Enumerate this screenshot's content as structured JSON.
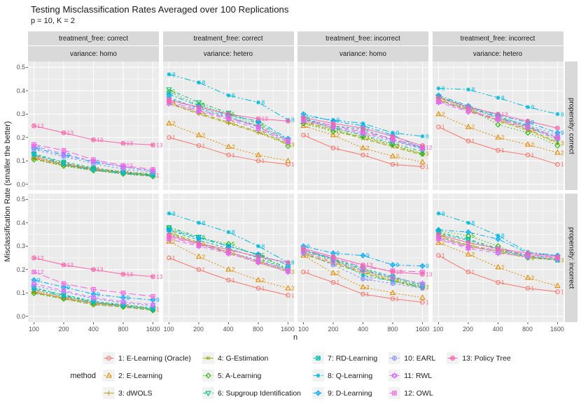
{
  "title": "Testing Misclassification Rates Averaged over 100 Replications",
  "subtitle": "p = 10, K = 2",
  "axes": {
    "x_label": "n",
    "y_label": "Misclassification Rate (smaller the better)",
    "x_ticks": [
      "100",
      "200",
      "400",
      "800",
      "1600"
    ],
    "y_ticks": [
      "0.0",
      "0.1",
      "0.2",
      "0.3",
      "0.4",
      "0.5"
    ]
  },
  "facets": {
    "columns": [
      {
        "line1": "treatment_free: correct",
        "line2": "variance: homo"
      },
      {
        "line1": "treatment_free: correct",
        "line2": "variance: hetero"
      },
      {
        "line1": "treatment_free: incorrect",
        "line2": "variance: homo"
      },
      {
        "line1": "treatment_free: incorrect",
        "line2": "variance: hetero"
      }
    ],
    "rows": [
      {
        "label": "propensity: correct"
      },
      {
        "label": "propensity: incorrect"
      }
    ]
  },
  "legend": {
    "title": "method",
    "items": [
      {
        "id": 1,
        "label": "1: E-Learning (Oracle)",
        "color": "#F8766D",
        "shape": 1,
        "dash": ""
      },
      {
        "id": 2,
        "label": "2: E-Learning",
        "color": "#E18A00",
        "shape": 2,
        "dash": "2,2.5"
      },
      {
        "id": 3,
        "label": "3: dWOLS",
        "color": "#BE9C00",
        "shape": 3,
        "dash": "5,2,1.5,2"
      },
      {
        "id": 4,
        "label": "4: G-Estimation",
        "color": "#8CAB00",
        "shape": 4,
        "dash": "6,3"
      },
      {
        "id": 5,
        "label": "5: A-Learning",
        "color": "#24B700",
        "shape": 5,
        "dash": "1.5,3"
      },
      {
        "id": 6,
        "label": "6: Supgroup Identification",
        "color": "#00BE70",
        "shape": 6,
        "dash": "5,3,1.5,3"
      },
      {
        "id": 7,
        "label": "7: RD-Learning",
        "color": "#00C1AB",
        "shape": 7,
        "dash": "4,3"
      },
      {
        "id": 8,
        "label": "8: Q-Learning",
        "color": "#00BBDA",
        "shape": 8,
        "dash": "9,3,2.5,3,2.5,3"
      },
      {
        "id": 9,
        "label": "9: D-Learning",
        "color": "#00ACFC",
        "shape": 9,
        "dash": "7,3,2,3"
      },
      {
        "id": 10,
        "label": "10: EARL",
        "color": "#8B93FF",
        "shape": 10,
        "dash": "3,3"
      },
      {
        "id": 11,
        "label": "11: RWL",
        "color": "#D575FE",
        "shape": 11,
        "dash": "6,4"
      },
      {
        "id": 12,
        "label": "12: OWL",
        "color": "#F962DD",
        "shape": 12,
        "dash": "10,4"
      },
      {
        "id": 13,
        "label": "13: Policy Tree",
        "color": "#FF65AC",
        "shape": 13,
        "dash": ""
      }
    ]
  },
  "chart_data": {
    "type": "line",
    "x": [
      100,
      200,
      400,
      800,
      1600
    ],
    "x_scale": "log2",
    "ylim": [
      0,
      0.5
    ],
    "grid": true,
    "legend_position": "bottom",
    "panels": [
      {
        "row": "propensity: correct",
        "col": "treatment_free: correct, variance: homo",
        "series": [
          [
            0.115,
            0.085,
            0.065,
            0.05,
            0.038
          ],
          [
            0.12,
            0.09,
            0.068,
            0.055,
            0.045
          ],
          [
            0.11,
            0.082,
            0.062,
            0.048,
            0.038
          ],
          [
            0.108,
            0.08,
            0.06,
            0.045,
            0.034
          ],
          [
            0.105,
            0.078,
            0.058,
            0.044,
            0.033
          ],
          [
            0.128,
            0.09,
            0.065,
            0.05,
            0.04
          ],
          [
            0.13,
            0.095,
            0.07,
            0.052,
            0.042
          ],
          [
            0.124,
            0.085,
            0.06,
            0.046,
            0.036
          ],
          [
            0.155,
            0.125,
            0.095,
            0.075,
            0.055
          ],
          [
            0.148,
            0.118,
            0.088,
            0.065,
            0.05
          ],
          [
            0.163,
            0.13,
            0.098,
            0.075,
            0.058
          ],
          [
            0.17,
            0.145,
            0.105,
            0.08,
            0.063
          ],
          [
            0.25,
            0.22,
            0.19,
            0.175,
            0.168
          ]
        ]
      },
      {
        "row": "propensity: correct",
        "col": "treatment_free: correct, variance: hetero",
        "series": [
          [
            0.2,
            0.165,
            0.125,
            0.1,
            0.085
          ],
          [
            0.26,
            0.21,
            0.16,
            0.125,
            0.1
          ],
          [
            0.345,
            0.3,
            0.26,
            0.22,
            0.17
          ],
          [
            0.35,
            0.305,
            0.265,
            0.225,
            0.175
          ],
          [
            0.395,
            0.34,
            0.3,
            0.25,
            0.163
          ],
          [
            0.405,
            0.35,
            0.305,
            0.26,
            0.19
          ],
          [
            0.37,
            0.325,
            0.29,
            0.245,
            0.185
          ],
          [
            0.47,
            0.435,
            0.38,
            0.35,
            0.275
          ],
          [
            0.385,
            0.335,
            0.295,
            0.27,
            0.195
          ],
          [
            0.365,
            0.32,
            0.285,
            0.25,
            0.19
          ],
          [
            0.345,
            0.31,
            0.278,
            0.235,
            0.18
          ],
          [
            0.355,
            0.315,
            0.283,
            0.245,
            0.185
          ],
          [
            0.36,
            0.33,
            0.3,
            0.28,
            0.27
          ]
        ]
      },
      {
        "row": "propensity: correct",
        "col": "treatment_free: incorrect, variance: homo",
        "series": [
          [
            0.21,
            0.155,
            0.125,
            0.085,
            0.075
          ],
          [
            0.25,
            0.21,
            0.155,
            0.12,
            0.095
          ],
          [
            0.27,
            0.235,
            0.2,
            0.165,
            0.13
          ],
          [
            0.265,
            0.23,
            0.195,
            0.16,
            0.125
          ],
          [
            0.26,
            0.225,
            0.205,
            0.17,
            0.13
          ],
          [
            0.28,
            0.24,
            0.21,
            0.175,
            0.14
          ],
          [
            0.28,
            0.25,
            0.235,
            0.19,
            0.155
          ],
          [
            0.29,
            0.275,
            0.26,
            0.22,
            0.205
          ],
          [
            0.3,
            0.27,
            0.25,
            0.21,
            0.155
          ],
          [
            0.275,
            0.24,
            0.215,
            0.185,
            0.15
          ],
          [
            0.27,
            0.245,
            0.22,
            0.19,
            0.152
          ],
          [
            0.276,
            0.25,
            0.225,
            0.195,
            0.158
          ],
          [
            0.285,
            0.26,
            0.24,
            0.205,
            0.165
          ]
        ]
      },
      {
        "row": "propensity: correct",
        "col": "treatment_free: incorrect, variance: hetero",
        "series": [
          [
            0.245,
            0.185,
            0.145,
            0.125,
            0.085
          ],
          [
            0.3,
            0.245,
            0.2,
            0.17,
            0.135
          ],
          [
            0.36,
            0.315,
            0.27,
            0.23,
            0.175
          ],
          [
            0.362,
            0.32,
            0.275,
            0.235,
            0.18
          ],
          [
            0.37,
            0.325,
            0.255,
            0.22,
            0.165
          ],
          [
            0.375,
            0.33,
            0.285,
            0.245,
            0.19
          ],
          [
            0.37,
            0.33,
            0.29,
            0.25,
            0.2
          ],
          [
            0.41,
            0.405,
            0.37,
            0.33,
            0.3
          ],
          [
            0.38,
            0.335,
            0.295,
            0.265,
            0.22
          ],
          [
            0.358,
            0.325,
            0.285,
            0.255,
            0.21
          ],
          [
            0.35,
            0.31,
            0.275,
            0.24,
            0.195
          ],
          [
            0.355,
            0.315,
            0.28,
            0.245,
            0.2
          ],
          [
            0.37,
            0.33,
            0.3,
            0.27,
            0.24
          ]
        ]
      },
      {
        "row": "propensity: incorrect",
        "col": "treatment_free: correct, variance: homo",
        "series": [
          [
            0.105,
            0.078,
            0.055,
            0.044,
            0.03
          ],
          [
            0.11,
            0.085,
            0.06,
            0.05,
            0.035
          ],
          [
            0.104,
            0.08,
            0.056,
            0.045,
            0.03
          ],
          [
            0.1,
            0.075,
            0.05,
            0.04,
            0.026
          ],
          [
            0.098,
            0.074,
            0.05,
            0.04,
            0.025
          ],
          [
            0.12,
            0.09,
            0.06,
            0.046,
            0.03
          ],
          [
            0.122,
            0.092,
            0.065,
            0.05,
            0.035
          ],
          [
            0.115,
            0.085,
            0.06,
            0.045,
            0.03
          ],
          [
            0.155,
            0.125,
            0.095,
            0.08,
            0.07
          ],
          [
            0.13,
            0.105,
            0.075,
            0.058,
            0.045
          ],
          [
            0.14,
            0.11,
            0.08,
            0.062,
            0.05
          ],
          [
            0.19,
            0.14,
            0.115,
            0.1,
            0.085
          ],
          [
            0.25,
            0.22,
            0.2,
            0.18,
            0.17
          ]
        ]
      },
      {
        "row": "propensity: incorrect",
        "col": "treatment_free: correct, variance: hetero",
        "series": [
          [
            0.25,
            0.2,
            0.155,
            0.12,
            0.09
          ],
          [
            0.32,
            0.255,
            0.2,
            0.155,
            0.12
          ],
          [
            0.355,
            0.31,
            0.27,
            0.23,
            0.19
          ],
          [
            0.36,
            0.315,
            0.275,
            0.235,
            0.195
          ],
          [
            0.378,
            0.335,
            0.31,
            0.26,
            0.2
          ],
          [
            0.38,
            0.34,
            0.3,
            0.262,
            0.205
          ],
          [
            0.37,
            0.325,
            0.29,
            0.25,
            0.198
          ],
          [
            0.44,
            0.4,
            0.36,
            0.3,
            0.23
          ],
          [
            0.37,
            0.335,
            0.3,
            0.265,
            0.22
          ],
          [
            0.35,
            0.31,
            0.275,
            0.24,
            0.2
          ],
          [
            0.33,
            0.3,
            0.268,
            0.23,
            0.19
          ],
          [
            0.34,
            0.305,
            0.275,
            0.235,
            0.196
          ],
          [
            0.345,
            0.312,
            0.285,
            0.255,
            0.23
          ]
        ]
      },
      {
        "row": "propensity: incorrect",
        "col": "treatment_free: incorrect, variance: homo",
        "series": [
          [
            0.19,
            0.145,
            0.095,
            0.075,
            0.06
          ],
          [
            0.26,
            0.185,
            0.125,
            0.1,
            0.08
          ],
          [
            0.27,
            0.23,
            0.19,
            0.155,
            0.125
          ],
          [
            0.265,
            0.225,
            0.185,
            0.15,
            0.12
          ],
          [
            0.28,
            0.24,
            0.195,
            0.16,
            0.125
          ],
          [
            0.285,
            0.245,
            0.2,
            0.165,
            0.13
          ],
          [
            0.28,
            0.245,
            0.205,
            0.17,
            0.135
          ],
          [
            0.285,
            0.245,
            0.175,
            0.15,
            0.125
          ],
          [
            0.3,
            0.27,
            0.26,
            0.22,
            0.215
          ],
          [
            0.27,
            0.22,
            0.16,
            0.14,
            0.12
          ],
          [
            0.275,
            0.235,
            0.195,
            0.165,
            0.14
          ],
          [
            0.285,
            0.25,
            0.21,
            0.195,
            0.19
          ],
          [
            0.29,
            0.255,
            0.22,
            0.19,
            0.18
          ]
        ]
      },
      {
        "row": "propensity: incorrect",
        "col": "treatment_free: incorrect, variance: hetero",
        "series": [
          [
            0.26,
            0.19,
            0.145,
            0.12,
            0.105
          ],
          [
            0.315,
            0.265,
            0.21,
            0.165,
            0.13
          ],
          [
            0.34,
            0.3,
            0.275,
            0.25,
            0.24
          ],
          [
            0.345,
            0.305,
            0.28,
            0.255,
            0.245
          ],
          [
            0.365,
            0.345,
            0.3,
            0.25,
            0.245
          ],
          [
            0.36,
            0.33,
            0.29,
            0.26,
            0.25
          ],
          [
            0.355,
            0.325,
            0.285,
            0.255,
            0.24
          ],
          [
            0.44,
            0.4,
            0.345,
            0.275,
            0.26
          ],
          [
            0.37,
            0.36,
            0.33,
            0.27,
            0.26
          ],
          [
            0.34,
            0.3,
            0.275,
            0.26,
            0.25
          ],
          [
            0.33,
            0.29,
            0.27,
            0.255,
            0.245
          ],
          [
            0.335,
            0.295,
            0.285,
            0.265,
            0.25
          ],
          [
            0.35,
            0.315,
            0.29,
            0.27,
            0.255
          ]
        ]
      }
    ]
  }
}
